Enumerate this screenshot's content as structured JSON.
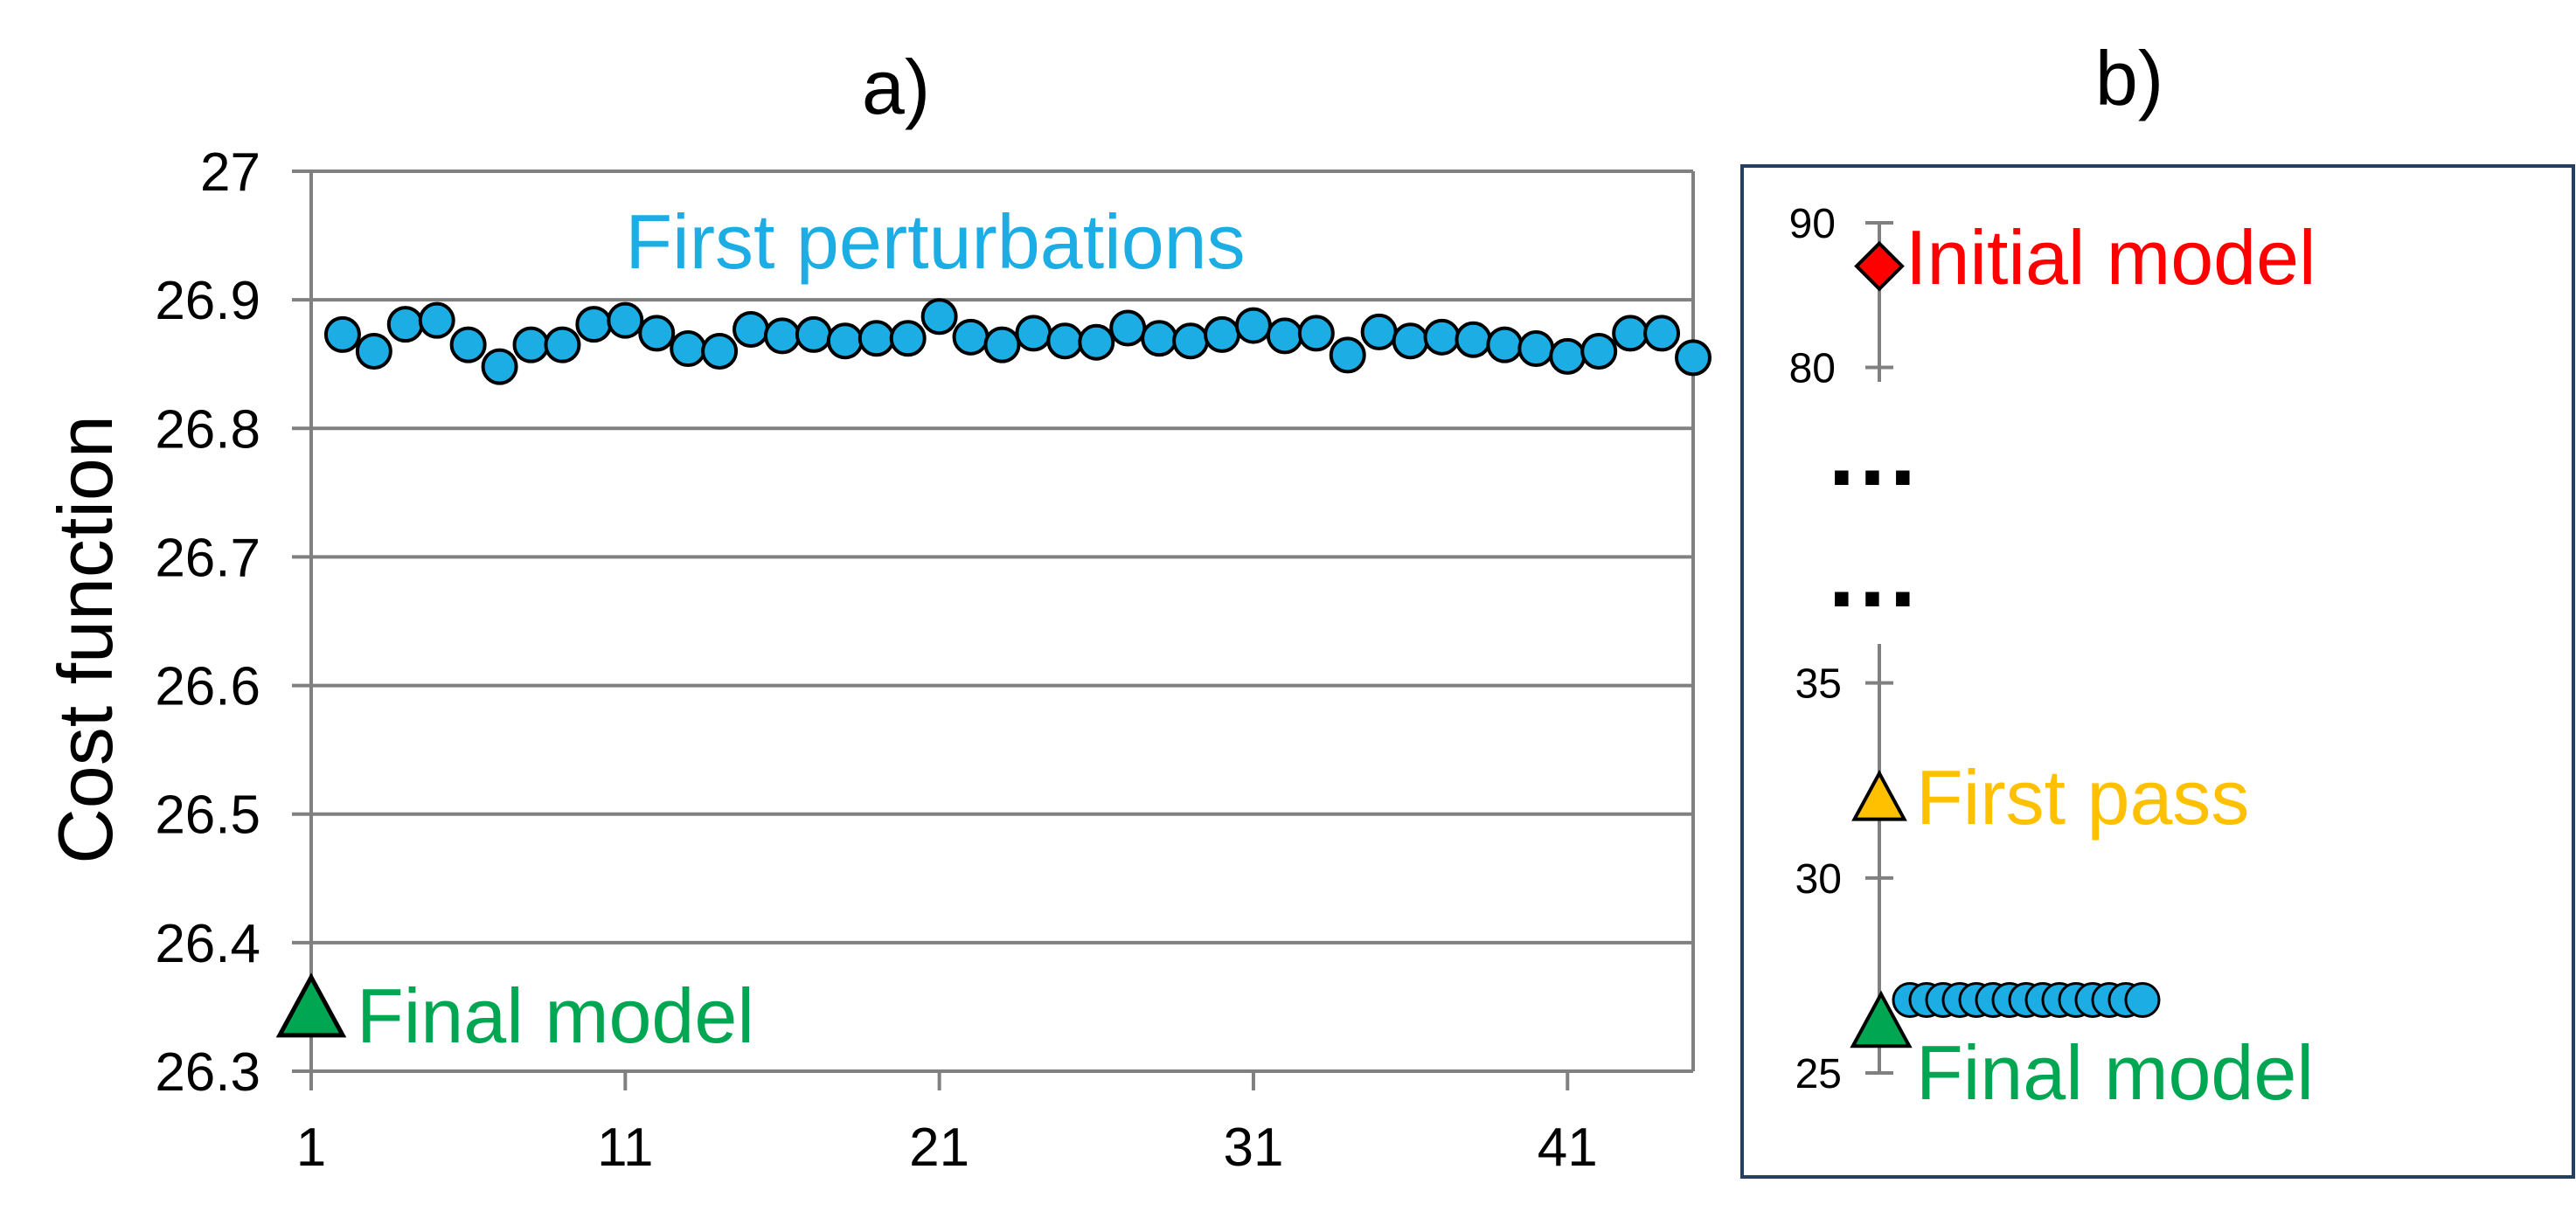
{
  "colors": {
    "perturbation": "#1CADE4",
    "final_model": "#00A651",
    "initial_model": "#FF0000",
    "first_pass": "#FFC000",
    "grid": "#808080",
    "frame": "#243F60"
  },
  "chart_data": [
    {
      "type": "scatter",
      "title": "a)",
      "ylabel": "Cost function",
      "xlabel": "",
      "xlim": [
        1,
        45
      ],
      "ylim": [
        26.3,
        27
      ],
      "yticks": [
        "26.3",
        "26.4",
        "26.5",
        "26.6",
        "26.7",
        "26.8",
        "26.9",
        "27"
      ],
      "xticks": [
        "1",
        "11",
        "21",
        "31",
        "41"
      ],
      "grid": true,
      "series": [
        {
          "name": "First perturbations",
          "marker": "circle",
          "x": [
            2,
            3,
            4,
            5,
            6,
            7,
            8,
            9,
            10,
            11,
            12,
            13,
            14,
            15,
            16,
            17,
            18,
            19,
            20,
            21,
            22,
            23,
            24,
            25,
            26,
            27,
            28,
            29,
            30,
            31,
            32,
            33,
            34,
            35,
            36,
            37,
            38,
            39,
            40,
            41,
            42,
            43,
            44,
            45
          ],
          "y": [
            26.873,
            26.86,
            26.881,
            26.884,
            26.865,
            26.848,
            26.865,
            26.865,
            26.881,
            26.884,
            26.874,
            26.862,
            26.86,
            26.877,
            26.872,
            26.873,
            26.868,
            26.87,
            26.87,
            26.887,
            26.871,
            26.865,
            26.874,
            26.868,
            26.867,
            26.878,
            26.87,
            26.868,
            26.873,
            26.88,
            26.872,
            26.874,
            26.857,
            26.875,
            26.868,
            26.871,
            26.869,
            26.865,
            26.862,
            26.856,
            26.86,
            26.874,
            26.874,
            26.855
          ]
        },
        {
          "name": "Final model",
          "marker": "triangle",
          "x": [
            1
          ],
          "y": [
            26.35
          ]
        }
      ]
    },
    {
      "type": "scatter",
      "title": "b)",
      "ylabel": "",
      "xlabel": "",
      "axis_break": true,
      "break_marker": "…",
      "lower_segment": {
        "ylim": [
          25,
          36
        ],
        "yticks": [
          "25",
          "30",
          "35"
        ]
      },
      "upper_segment": {
        "ylim": [
          79,
          90
        ],
        "yticks": [
          "80",
          "90"
        ]
      },
      "series": [
        {
          "name": "Initial model",
          "marker": "diamond",
          "y": [
            87
          ]
        },
        {
          "name": "First pass",
          "marker": "triangle",
          "y": [
            32.1
          ]
        },
        {
          "name": "Final model",
          "marker": "triangle",
          "y": [
            26.35
          ]
        },
        {
          "name": "",
          "marker": "circle",
          "count": 15,
          "y": [
            26.87
          ]
        }
      ]
    }
  ]
}
